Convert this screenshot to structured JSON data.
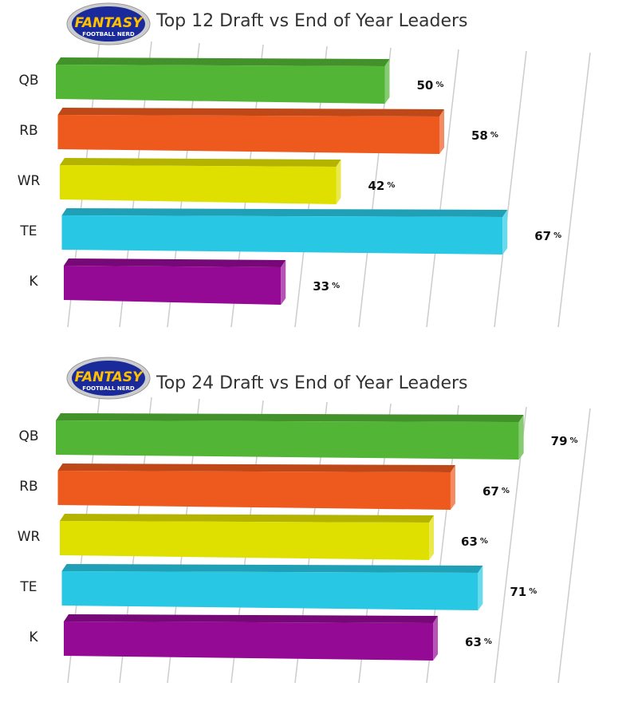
{
  "chart_data": [
    {
      "type": "bar",
      "orientation": "horizontal",
      "style": "3d",
      "title": "Top 12 Draft vs End of Year Leaders",
      "categories": [
        "QB",
        "RB",
        "WR",
        "TE",
        "K"
      ],
      "values": [
        50,
        58,
        42,
        67,
        33
      ],
      "unit": "%",
      "colors": [
        "#52b535",
        "#ee5a1e",
        "#e0e000",
        "#28c8e4",
        "#950a95"
      ],
      "grid": true
    },
    {
      "type": "bar",
      "orientation": "horizontal",
      "style": "3d",
      "title": "Top 24 Draft vs End of Year Leaders",
      "categories": [
        "QB",
        "RB",
        "WR",
        "TE",
        "K"
      ],
      "values": [
        79,
        67,
        63,
        71,
        63
      ],
      "unit": "%",
      "colors": [
        "#52b535",
        "#ee5a1e",
        "#e0e000",
        "#28c8e4",
        "#950a95"
      ],
      "grid": true
    }
  ],
  "logo": {
    "text_main": "FANTASY",
    "text_sub": "FOOTBALL NERD"
  }
}
